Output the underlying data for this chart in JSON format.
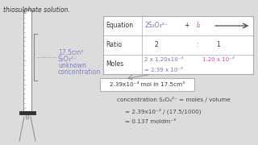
{
  "bg_color": "#dcdcdc",
  "title_text": "thiosulphate solution.",
  "equation_color": "#7070bb",
  "iodine_color": "#cc44aa",
  "moles_blue": "#7070bb",
  "moles_pink": "#cc44aa",
  "burette_label_color": "#8080cc",
  "table_col0": [
    "Equation",
    "Ratio",
    "Moles"
  ],
  "arrow_color": "#333333",
  "line_color": "#aaaaaa",
  "text_color": "#444444",
  "burette_color": "#888888",
  "brace_color": "#888888"
}
